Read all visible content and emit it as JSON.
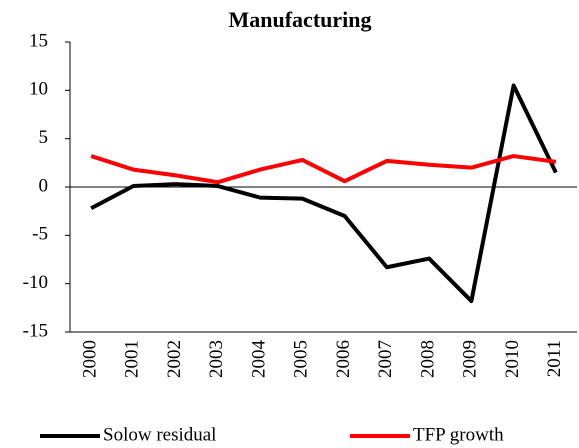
{
  "chart_data": {
    "type": "line",
    "title": "Manufacturing",
    "categories": [
      "2000",
      "2001",
      "2002",
      "2003",
      "2004",
      "2005",
      "2006",
      "2007",
      "2008",
      "2009",
      "2010",
      "2011"
    ],
    "series": [
      {
        "name": "Solow residual",
        "color": "#000000",
        "values": [
          -2.2,
          0.1,
          0.3,
          0.1,
          -1.1,
          -1.2,
          -3.0,
          -8.3,
          -7.4,
          -11.8,
          10.5,
          1.5
        ]
      },
      {
        "name": "TFP growth",
        "color": "#ff0000",
        "values": [
          3.2,
          1.8,
          1.2,
          0.5,
          1.8,
          2.8,
          0.6,
          2.7,
          2.3,
          2.0,
          3.2,
          2.6
        ]
      }
    ],
    "ylim": [
      -15,
      15
    ],
    "yticks": [
      -15,
      -10,
      -5,
      0,
      5,
      10,
      15
    ],
    "legend": "bottom"
  }
}
